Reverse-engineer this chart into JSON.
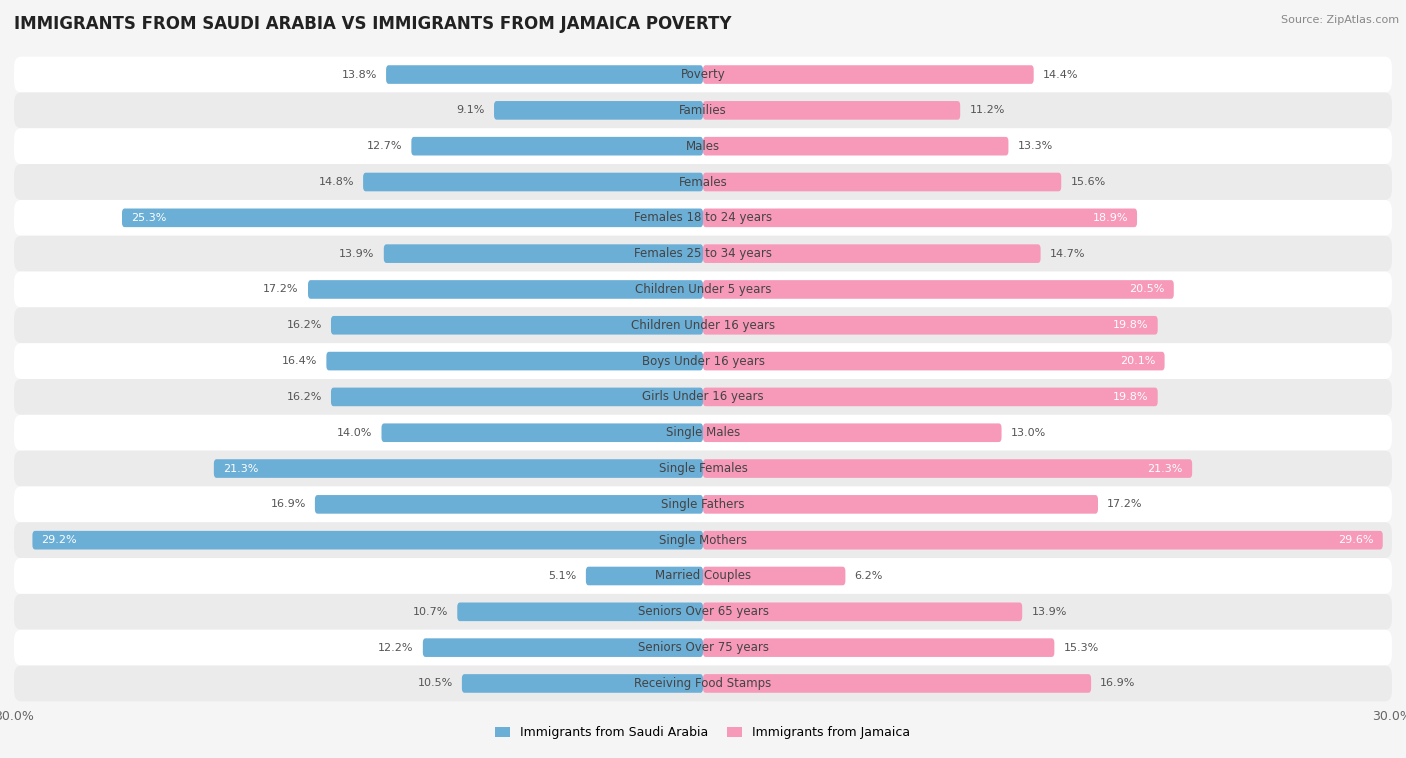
{
  "title": "IMMIGRANTS FROM SAUDI ARABIA VS IMMIGRANTS FROM JAMAICA POVERTY",
  "source": "Source: ZipAtlas.com",
  "categories": [
    "Poverty",
    "Families",
    "Males",
    "Females",
    "Females 18 to 24 years",
    "Females 25 to 34 years",
    "Children Under 5 years",
    "Children Under 16 years",
    "Boys Under 16 years",
    "Girls Under 16 years",
    "Single Males",
    "Single Females",
    "Single Fathers",
    "Single Mothers",
    "Married Couples",
    "Seniors Over 65 years",
    "Seniors Over 75 years",
    "Receiving Food Stamps"
  ],
  "saudi_values": [
    13.8,
    9.1,
    12.7,
    14.8,
    25.3,
    13.9,
    17.2,
    16.2,
    16.4,
    16.2,
    14.0,
    21.3,
    16.9,
    29.2,
    5.1,
    10.7,
    12.2,
    10.5
  ],
  "jamaica_values": [
    14.4,
    11.2,
    13.3,
    15.6,
    18.9,
    14.7,
    20.5,
    19.8,
    20.1,
    19.8,
    13.0,
    21.3,
    17.2,
    29.6,
    6.2,
    13.9,
    15.3,
    16.9
  ],
  "saudi_color": "#6baed6",
  "saudi_highlight_color": "#4a90c4",
  "jamaica_color": "#f799b8",
  "jamaica_highlight_color": "#e8608a",
  "saudi_label": "Immigrants from Saudi Arabia",
  "jamaica_label": "Immigrants from Jamaica",
  "x_max": 30.0,
  "background_color": "#f5f5f5",
  "row_color_odd": "#ffffff",
  "row_color_even": "#ebebeb",
  "title_fontsize": 12,
  "label_fontsize": 8.5,
  "value_fontsize": 8.0,
  "inside_threshold": 18.0,
  "saudi_inside_threshold": 20.0,
  "jamaica_inside_threshold": 18.0
}
